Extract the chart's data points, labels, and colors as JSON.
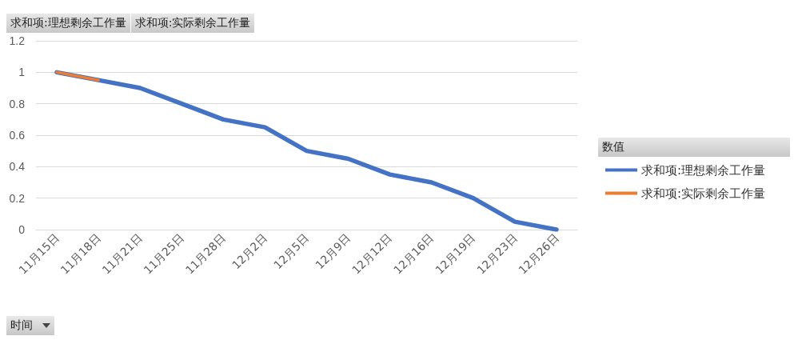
{
  "chart_data": {
    "type": "line",
    "categories": [
      "11月15日",
      "11月18日",
      "11月21日",
      "11月25日",
      "11月28日",
      "12月2日",
      "12月5日",
      "12月9日",
      "12月12日",
      "12月16日",
      "12月19日",
      "12月23日",
      "12月26日"
    ],
    "series": [
      {
        "name": "求和项:理想剩余工作量",
        "color": "#4472c4",
        "values": [
          1,
          0.95,
          0.9,
          0.8,
          0.7,
          0.65,
          0.5,
          0.45,
          0.35,
          0.3,
          0.2,
          0.05,
          0
        ]
      },
      {
        "name": "求和项:实际剩余工作量",
        "color": "#ed7d31",
        "values": [
          1,
          0.95,
          null,
          null,
          null,
          null,
          null,
          null,
          null,
          null,
          null,
          null,
          null
        ]
      }
    ],
    "ylim": [
      0,
      1.2
    ],
    "yticks": [
      0,
      0.2,
      0.4,
      0.6,
      0.8,
      1,
      1.2
    ],
    "xlabel": "时间",
    "legend_title": "数值",
    "annotations": [
      "求和项:理想剩余工作量",
      "求和项:实际剩余工作量"
    ],
    "grid": "y",
    "legend": "right",
    "marker": "none",
    "line_style": "solid"
  }
}
